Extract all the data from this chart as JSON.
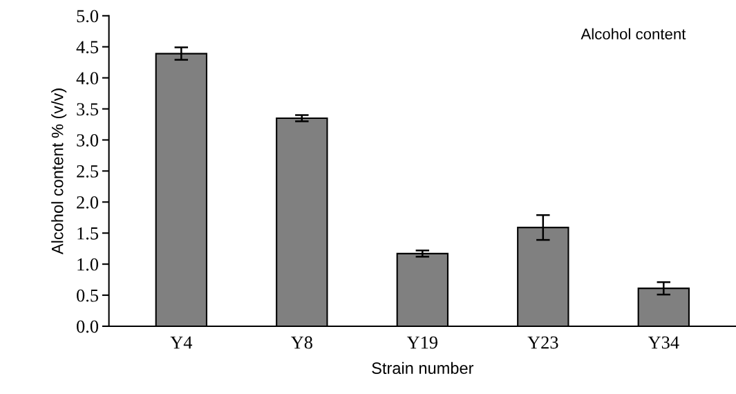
{
  "chart_data": {
    "type": "bar",
    "annotations": [
      "Alcohol content"
    ],
    "xlabel": "Strain number",
    "ylabel": "Alcohol content % (v/v)",
    "categories": [
      "Y4",
      "Y8",
      "Y19",
      "Y23",
      "Y34"
    ],
    "values": [
      4.39,
      3.35,
      1.17,
      1.59,
      0.61
    ],
    "errors": [
      0.1,
      0.05,
      0.05,
      0.2,
      0.1
    ],
    "color": "#808080",
    "ylim": [
      0,
      5
    ],
    "yticks": [
      {
        "value": 0,
        "label": "0.0"
      },
      {
        "value": 0.5,
        "label": "0.5"
      },
      {
        "value": 1,
        "label": "1.0"
      },
      {
        "value": 1.5,
        "label": "1.5"
      },
      {
        "value": 2,
        "label": "2.0"
      },
      {
        "value": 2.5,
        "label": "2.5"
      },
      {
        "value": 3,
        "label": "3.0"
      },
      {
        "value": 3.5,
        "label": "3.5"
      },
      {
        "value": 4,
        "label": "4.0"
      },
      {
        "value": 4.5,
        "label": "4.5"
      },
      {
        "value": 5,
        "label": "5.0"
      }
    ],
    "grid": false
  }
}
